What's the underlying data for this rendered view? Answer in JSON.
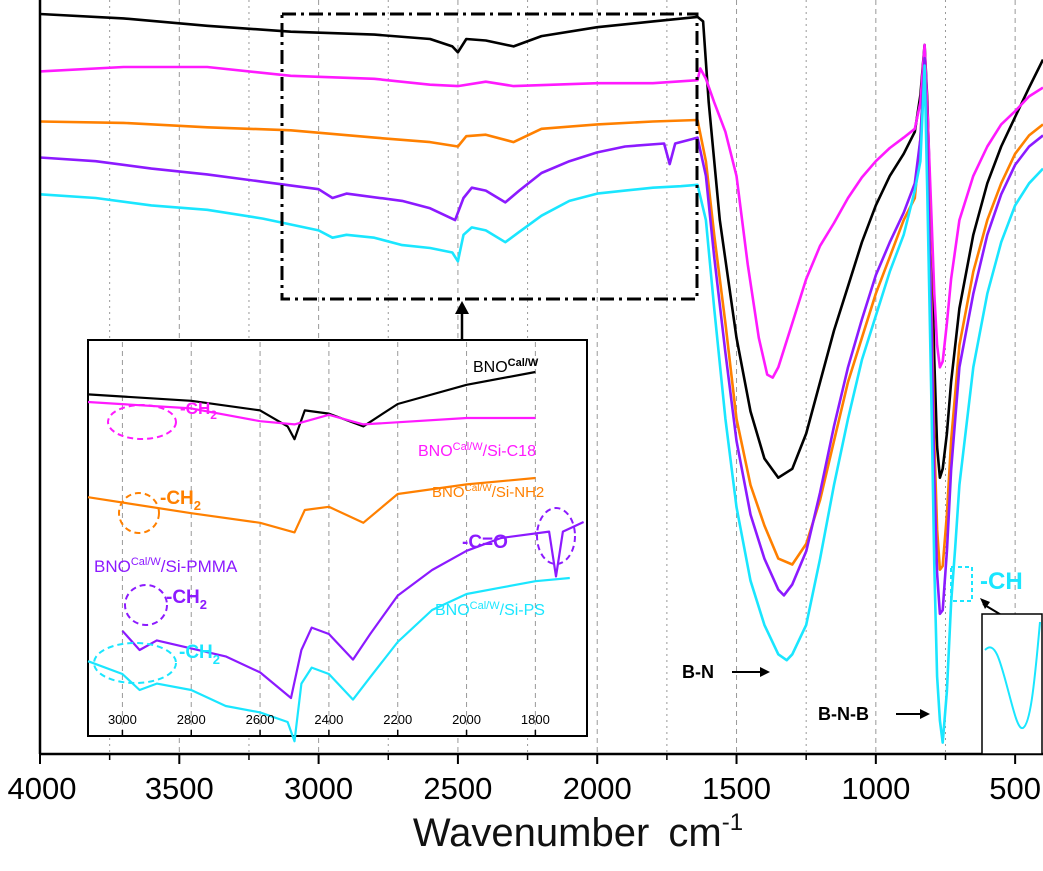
{
  "chart_data": {
    "type": "line",
    "title": "",
    "xlabel": "Wavenumber",
    "xlabel_unit": "cm",
    "xlabel_sup": "-1",
    "ylabel": "",
    "xlim": [
      4000,
      400
    ],
    "reversed_x": true,
    "x_ticks": [
      4000,
      3500,
      3000,
      2500,
      2000,
      1500,
      1000,
      500
    ],
    "grid": "vertical dashed",
    "series": [
      {
        "key": "black",
        "color": "#000000",
        "x": [
          4000,
          3700,
          3400,
          3100,
          2800,
          2600,
          2520,
          2500,
          2470,
          2400,
          2300,
          2200,
          2000,
          1800,
          1640,
          1620,
          1600,
          1560,
          1500,
          1450,
          1400,
          1350,
          1300,
          1250,
          1200,
          1150,
          1100,
          1050,
          1000,
          950,
          900,
          860,
          840,
          825,
          815,
          800,
          790,
          780,
          770,
          760,
          745,
          730,
          700,
          650,
          600,
          550,
          500,
          450,
          400
        ],
        "y": [
          100,
          99.4,
          98.4,
          97.6,
          97.2,
          96.6,
          95.6,
          94.8,
          96.6,
          96.4,
          95.6,
          97.0,
          98.2,
          99.0,
          99.6,
          99.0,
          88.0,
          72.0,
          56.0,
          46.0,
          39.6,
          37.0,
          38.2,
          43.0,
          50.0,
          57.0,
          63.0,
          69.0,
          74.0,
          78.0,
          81.0,
          84.0,
          89.0,
          95.8,
          88.0,
          68.0,
          53.0,
          41.2,
          37.0,
          38.2,
          43.0,
          50.0,
          60.0,
          70.0,
          77.0,
          82.0,
          86.0,
          90.0,
          93.8
        ]
      },
      {
        "key": "magenta",
        "color": "#ff1aff",
        "x": [
          4000,
          3700,
          3400,
          3100,
          2800,
          2600,
          2500,
          2400,
          2300,
          2000,
          1800,
          1640,
          1630,
          1610,
          1580,
          1540,
          1500,
          1460,
          1420,
          1390,
          1370,
          1350,
          1300,
          1250,
          1200,
          1150,
          1100,
          1050,
          1000,
          950,
          900,
          860,
          840,
          825,
          815,
          800,
          790,
          780,
          770,
          760,
          745,
          730,
          700,
          650,
          600,
          550,
          500,
          450,
          400
        ],
        "y": [
          92.2,
          92.8,
          92.8,
          91.6,
          91.2,
          90.4,
          90.2,
          90.8,
          90.2,
          90.6,
          90.6,
          91.0,
          92.6,
          91.2,
          88.0,
          84.0,
          78.0,
          66.0,
          56.0,
          51.0,
          50.6,
          52.0,
          58.0,
          64.0,
          68.5,
          71.6,
          75.0,
          77.8,
          80.0,
          81.8,
          83.2,
          84.4,
          88.0,
          95.8,
          87.0,
          72.0,
          62.0,
          55.0,
          52.0,
          52.8,
          58.0,
          64.0,
          72.0,
          78.0,
          82.0,
          85.0,
          86.8,
          88.8,
          90.0
        ]
      },
      {
        "key": "orange",
        "color": "#ff8000",
        "x": [
          4000,
          3700,
          3400,
          3100,
          2800,
          2600,
          2500,
          2470,
          2400,
          2300,
          2200,
          2000,
          1800,
          1640,
          1610,
          1580,
          1540,
          1500,
          1450,
          1400,
          1350,
          1300,
          1250,
          1200,
          1150,
          1100,
          1050,
          1000,
          950,
          900,
          860,
          840,
          825,
          815,
          800,
          790,
          780,
          770,
          760,
          745,
          730,
          700,
          650,
          600,
          550,
          500,
          450,
          400
        ],
        "y": [
          85.4,
          85.2,
          84.6,
          84.2,
          83.2,
          82.6,
          82.0,
          83.4,
          83.6,
          82.6,
          84.4,
          85.0,
          85.4,
          85.6,
          80.0,
          70.0,
          58.0,
          45.0,
          36.0,
          30.5,
          26.0,
          25.2,
          28.0,
          34.0,
          42.0,
          50.0,
          56.0,
          62.0,
          67.0,
          72.0,
          75.0,
          83.0,
          94.0,
          83.0,
          60.0,
          42.0,
          30.0,
          24.5,
          25.0,
          32.0,
          42.0,
          55.0,
          65.0,
          72.0,
          77.0,
          81.0,
          83.5,
          85.0
        ]
      },
      {
        "key": "purple",
        "color": "#8c1aff",
        "x": [
          4000,
          3800,
          3600,
          3400,
          3200,
          3000,
          2950,
          2900,
          2700,
          2600,
          2510,
          2480,
          2450,
          2400,
          2330,
          2280,
          2200,
          2100,
          2000,
          1900,
          1760,
          1740,
          1720,
          1660,
          1640,
          1610,
          1580,
          1540,
          1500,
          1450,
          1400,
          1350,
          1330,
          1300,
          1250,
          1200,
          1150,
          1100,
          1050,
          1000,
          950,
          900,
          860,
          840,
          825,
          815,
          800,
          790,
          780,
          770,
          760,
          745,
          730,
          700,
          650,
          600,
          550,
          500,
          450,
          400
        ],
        "y": [
          80.5,
          80.0,
          79.0,
          78.2,
          77.2,
          76.2,
          75.0,
          75.6,
          74.6,
          73.6,
          72.0,
          75.0,
          76.4,
          76.0,
          74.4,
          76.0,
          78.4,
          80.0,
          81.2,
          82.0,
          82.4,
          79.6,
          82.4,
          83.0,
          83.2,
          78.0,
          67.0,
          54.0,
          42.0,
          32.0,
          26.0,
          21.8,
          21.0,
          22.5,
          27.0,
          35.0,
          44.0,
          52.0,
          58.5,
          64.5,
          69.0,
          73.0,
          77.0,
          83.0,
          94.0,
          82.0,
          57.0,
          37.0,
          24.0,
          18.5,
          19.0,
          27.0,
          38.0,
          52.0,
          62.0,
          70.0,
          75.5,
          79.5,
          82.0,
          83.5
        ]
      },
      {
        "key": "cyan",
        "color": "#1ae6ff",
        "x": [
          4000,
          3800,
          3600,
          3400,
          3200,
          3100,
          3000,
          2950,
          2900,
          2800,
          2700,
          2600,
          2520,
          2500,
          2480,
          2450,
          2400,
          2330,
          2280,
          2200,
          2100,
          2000,
          1900,
          1800,
          1700,
          1640,
          1610,
          1580,
          1540,
          1500,
          1450,
          1400,
          1350,
          1320,
          1300,
          1250,
          1200,
          1150,
          1100,
          1050,
          1000,
          950,
          900,
          860,
          840,
          825,
          815,
          800,
          790,
          780,
          770,
          760,
          745,
          730,
          715,
          700,
          650,
          600,
          550,
          500,
          450,
          400
        ],
        "y": [
          75.5,
          75.0,
          74.0,
          73.4,
          72.2,
          71.4,
          70.6,
          69.6,
          70.0,
          69.6,
          68.6,
          68.2,
          67.6,
          66.4,
          70.0,
          71.0,
          70.6,
          69.0,
          70.4,
          72.6,
          74.6,
          75.6,
          76.0,
          76.4,
          76.6,
          76.8,
          72.0,
          60.0,
          45.0,
          33.0,
          23.0,
          17.0,
          13.0,
          12.2,
          13.0,
          17.0,
          26.0,
          36.0,
          45.0,
          53.0,
          59.0,
          65.0,
          70.0,
          76.0,
          80.0,
          93.0,
          75.0,
          46.0,
          25.0,
          10.0,
          4.0,
          1.0,
          8.0,
          20.0,
          27.5,
          36.0,
          52.0,
          62.0,
          69.0,
          74.0,
          77.0,
          79.0
        ]
      }
    ],
    "inset": {
      "xlim": [
        3100,
        1650
      ],
      "x_ticks": [
        3000,
        2800,
        2600,
        2400,
        2200,
        2000,
        1800
      ],
      "labels": {
        "black": {
          "main": "BNO",
          "sup": "Cal/W",
          "suffix": ""
        },
        "magenta": {
          "main": "BNO",
          "sup": "Cal/W",
          "suffix": "/Si-C18"
        },
        "orange": {
          "main": "BNO",
          "sup": "Cal/W",
          "suffix": "/Si-NH2"
        },
        "purple": {
          "main": "BNO",
          "sup": "Cal/W",
          "suffix": "/Si-PMMA"
        },
        "cyan": {
          "main": "BNO",
          "sup": "Cal/W",
          "suffix": "/Si-PS"
        }
      },
      "annotations": {
        "ch2": {
          "main": "-CH",
          "sub": "2"
        },
        "co": "-C=O"
      }
    },
    "annotations": {
      "bn": "B-N",
      "bnb": "B-N-B",
      "ch": "-CH"
    }
  }
}
